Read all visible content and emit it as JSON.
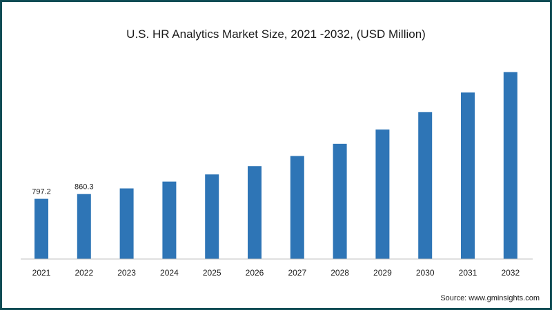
{
  "chart_data": {
    "type": "bar",
    "title": "U.S. HR Analytics Market Size, 2021 -2032, (USD Million)",
    "categories": [
      "2021",
      "2022",
      "2023",
      "2024",
      "2025",
      "2026",
      "2027",
      "2028",
      "2029",
      "2030",
      "2031",
      "2032"
    ],
    "values": [
      797.2,
      860.3,
      935,
      1025,
      1120,
      1230,
      1365,
      1525,
      1715,
      1945,
      2205,
      2475
    ],
    "data_labels": [
      "797.2",
      "860.3",
      null,
      null,
      null,
      null,
      null,
      null,
      null,
      null,
      null,
      null
    ],
    "bar_color": "#2e75b6",
    "ylim": [
      0,
      2700
    ],
    "grid": false,
    "xlabel": "",
    "ylabel": ""
  },
  "source": "Source: www.gminsights.com",
  "colors": {
    "frame": "#0f4c55",
    "axis": "#bfbfbf"
  }
}
